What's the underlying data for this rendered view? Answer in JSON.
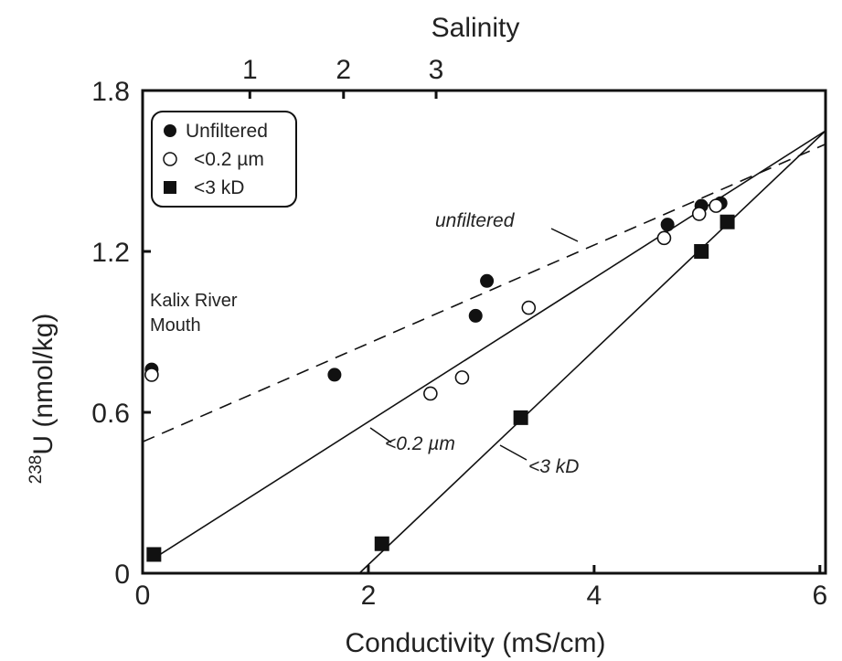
{
  "chart_data": {
    "type": "scatter",
    "xlabel": "Conductivity (mS/cm)",
    "x2label": "Salinity",
    "ylabel_sup": "238",
    "ylabel_main": "U (nmol/kg)",
    "xlim": [
      0,
      6.05
    ],
    "ylim": [
      0,
      1.8
    ],
    "x_ticks": [
      {
        "value": 0,
        "label": "0"
      },
      {
        "value": 2,
        "label": "2"
      },
      {
        "value": 4,
        "label": "4"
      },
      {
        "value": 6,
        "label": "6"
      }
    ],
    "y_ticks": [
      {
        "value": 0,
        "label": "0"
      },
      {
        "value": 0.6,
        "label": "0.6"
      },
      {
        "value": 1.2,
        "label": "1.2"
      },
      {
        "value": 1.8,
        "label": "1.8"
      }
    ],
    "x2_ticks": [
      {
        "value": 0.95,
        "label": "1"
      },
      {
        "value": 1.78,
        "label": "2"
      },
      {
        "value": 2.6,
        "label": "3"
      }
    ],
    "series": [
      {
        "name": "Unfiltered",
        "marker": "filled-circle",
        "points": [
          [
            0.08,
            0.76
          ],
          [
            1.7,
            0.74
          ],
          [
            2.95,
            0.96
          ],
          [
            3.05,
            1.09
          ],
          [
            4.65,
            1.3
          ],
          [
            4.95,
            1.37
          ],
          [
            5.12,
            1.38
          ]
        ]
      },
      {
        "name": "<0.2 µm",
        "marker": "open-circle",
        "points": [
          [
            0.08,
            0.74
          ],
          [
            2.55,
            0.67
          ],
          [
            2.83,
            0.73
          ],
          [
            3.42,
            0.99
          ],
          [
            4.62,
            1.25
          ],
          [
            4.93,
            1.34
          ],
          [
            5.08,
            1.37
          ]
        ]
      },
      {
        "name": "<3 kD",
        "marker": "filled-square",
        "points": [
          [
            0.1,
            0.07
          ],
          [
            2.12,
            0.11
          ],
          [
            3.35,
            0.58
          ],
          [
            4.95,
            1.2
          ],
          [
            5.18,
            1.31
          ]
        ]
      }
    ],
    "fit_lines": [
      {
        "label": "unfiltered",
        "style": "dashed",
        "from": [
          0,
          0.49
        ],
        "to": [
          6.05,
          1.6
        ]
      },
      {
        "label": "<0.2 µm",
        "style": "solid",
        "from": [
          0.08,
          0.05
        ],
        "to": [
          6.05,
          1.65
        ]
      },
      {
        "label": "<3 kD",
        "style": "solid",
        "from": [
          1.92,
          0.0
        ],
        "to": [
          6.05,
          1.65
        ]
      }
    ],
    "annotations": {
      "river_line1": "Kalix River",
      "river_line2": "Mouth"
    },
    "legend": {
      "position": "top-left"
    },
    "grid": false
  }
}
